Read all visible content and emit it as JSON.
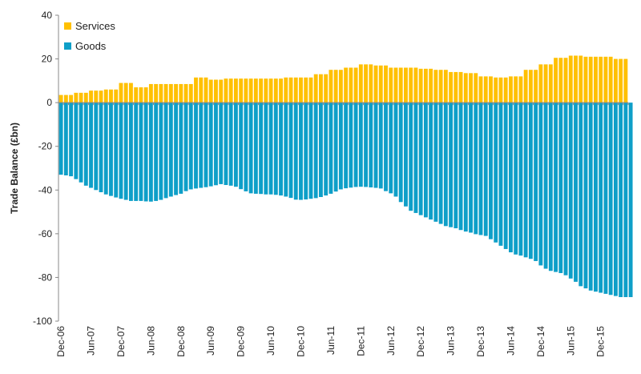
{
  "chart_data": {
    "type": "bar",
    "stacked": true,
    "ylabel": "Trade Balance (£bn)",
    "ylim": [
      -100,
      40
    ],
    "yticks": [
      40,
      20,
      0,
      -20,
      -40,
      -60,
      -80,
      -100
    ],
    "x_tick_labels": [
      "Dec-06",
      "Jun-07",
      "Dec-07",
      "Jun-08",
      "Dec-08",
      "Jun-09",
      "Dec-09",
      "Jun-10",
      "Dec-10",
      "Jun-11",
      "Dec-11",
      "Jun-12",
      "Dec-12",
      "Jun-13",
      "Dec-13",
      "Jun-14",
      "Dec-14",
      "Jun-15",
      "Dec-15"
    ],
    "x_tick_every": 6,
    "legend_position": "top-left",
    "grid": false,
    "series": [
      {
        "name": "Services",
        "color": "#FFC000",
        "values": [
          3.5,
          3.5,
          3.5,
          4.5,
          4.5,
          4.5,
          5.5,
          5.5,
          5.5,
          6,
          6,
          6,
          9,
          9,
          9,
          7,
          7,
          7,
          8.5,
          8.5,
          8.5,
          8.5,
          8.5,
          8.5,
          8.5,
          8.5,
          8.5,
          11.5,
          11.5,
          11.5,
          10.5,
          10.5,
          10.5,
          11,
          11,
          11,
          11,
          11,
          11,
          11,
          11,
          11,
          11,
          11,
          11,
          11.5,
          11.5,
          11.5,
          11.5,
          11.5,
          11.5,
          13,
          13,
          13,
          15,
          15,
          15,
          16,
          16,
          16,
          17.5,
          17.5,
          17.5,
          17,
          17,
          17,
          16,
          16,
          16,
          16,
          16,
          16,
          15.5,
          15.5,
          15.5,
          15,
          15,
          15,
          14,
          14,
          14,
          13.5,
          13.5,
          13.5,
          12,
          12,
          12,
          11.5,
          11.5,
          11.5,
          12,
          12,
          12,
          15,
          15,
          15,
          17.5,
          17.5,
          17.5,
          20.5,
          20.5,
          20.5,
          21.5,
          21.5,
          21.5,
          21,
          21,
          21,
          21,
          21,
          21,
          20,
          20,
          20
        ]
      },
      {
        "name": "Goods",
        "color": "#0E9FC8",
        "values": [
          -33,
          -33.3,
          -33.7,
          -35,
          -36.5,
          -38,
          -39,
          -40,
          -41,
          -42,
          -42.7,
          -43.4,
          -44,
          -44.5,
          -45,
          -45,
          -45,
          -45.2,
          -45.3,
          -45,
          -44.5,
          -43.7,
          -43,
          -42.3,
          -41.7,
          -40.5,
          -39.7,
          -39.3,
          -39,
          -38.7,
          -38.3,
          -37.8,
          -37.3,
          -37.7,
          -38,
          -38.5,
          -39.6,
          -40.6,
          -41.5,
          -41.7,
          -41.8,
          -42,
          -42,
          -42.2,
          -42.5,
          -43,
          -43.6,
          -44.4,
          -44.5,
          -44.3,
          -44,
          -43.7,
          -43.2,
          -42.5,
          -41.7,
          -40.7,
          -39.7,
          -39.2,
          -38.9,
          -38.6,
          -38.5,
          -38.6,
          -38.8,
          -39,
          -39.3,
          -40.5,
          -41.5,
          -43,
          -45.5,
          -47.5,
          -49.5,
          -50.5,
          -51.5,
          -52.5,
          -53.5,
          -54.5,
          -55.5,
          -56.5,
          -57,
          -57.5,
          -58.3,
          -59,
          -59.5,
          -60.2,
          -60.6,
          -61,
          -62.5,
          -64,
          -65.5,
          -67,
          -68.5,
          -69.5,
          -70,
          -70.8,
          -71.5,
          -72.5,
          -74.5,
          -76,
          -77,
          -77.5,
          -78,
          -79,
          -80.5,
          -82,
          -84,
          -85,
          -86,
          -86.5,
          -87,
          -87.5,
          -88,
          -88.5,
          -89,
          -89,
          -89
        ]
      }
    ]
  }
}
